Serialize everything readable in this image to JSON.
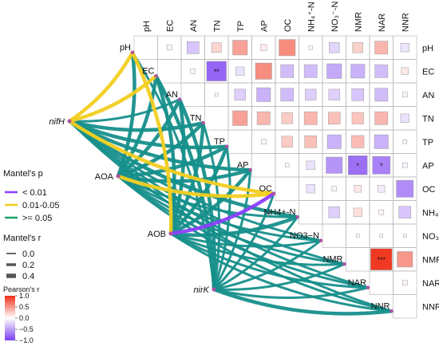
{
  "chart_data": {
    "type": "heatmap",
    "variables": [
      "pH",
      "EC",
      "AN",
      "TN",
      "TP",
      "AP",
      "OC",
      "NH₄⁺-N",
      "NO₃⁻-N",
      "NMR",
      "NAR",
      "NNR"
    ],
    "heatmap_layout": "upper-triangle",
    "network_labels": [
      "pH",
      "EC",
      "AN",
      "TN",
      "TP",
      "AP",
      "OC",
      "NH4+-N",
      "NO3−N",
      "NMR",
      "NAR",
      "NNR"
    ],
    "pearson_r": [
      {
        "row": "pH",
        "col": "EC",
        "r": -0.05,
        "sig": ""
      },
      {
        "row": "pH",
        "col": "AN",
        "r": -0.3,
        "sig": ""
      },
      {
        "row": "pH",
        "col": "TN",
        "r": 0.2,
        "sig": ""
      },
      {
        "row": "pH",
        "col": "TP",
        "r": 0.45,
        "sig": ""
      },
      {
        "row": "pH",
        "col": "AP",
        "r": 0.08,
        "sig": ""
      },
      {
        "row": "pH",
        "col": "OC",
        "r": 0.55,
        "sig": ""
      },
      {
        "row": "pH",
        "col": "NH4",
        "r": -0.03,
        "sig": ""
      },
      {
        "row": "pH",
        "col": "NO3",
        "r": -0.22,
        "sig": ""
      },
      {
        "row": "pH",
        "col": "NMR",
        "r": 0.22,
        "sig": ""
      },
      {
        "row": "pH",
        "col": "NAR",
        "r": 0.35,
        "sig": ""
      },
      {
        "row": "pH",
        "col": "NNR",
        "r": -0.15,
        "sig": ""
      },
      {
        "row": "EC",
        "col": "AN",
        "r": -0.05,
        "sig": ""
      },
      {
        "row": "EC",
        "col": "TN",
        "r": -0.8,
        "sig": "**"
      },
      {
        "row": "EC",
        "col": "TP",
        "r": -0.15,
        "sig": ""
      },
      {
        "row": "EC",
        "col": "AP",
        "r": 0.55,
        "sig": ""
      },
      {
        "row": "EC",
        "col": "OC",
        "r": -0.35,
        "sig": ""
      },
      {
        "row": "EC",
        "col": "NH4",
        "r": -0.35,
        "sig": ""
      },
      {
        "row": "EC",
        "col": "NO3",
        "r": -0.45,
        "sig": ""
      },
      {
        "row": "EC",
        "col": "NMR",
        "r": -0.4,
        "sig": ""
      },
      {
        "row": "EC",
        "col": "NAR",
        "r": -0.35,
        "sig": ""
      },
      {
        "row": "EC",
        "col": "NNR",
        "r": 0.1,
        "sig": ""
      },
      {
        "row": "AN",
        "col": "TN",
        "r": 0.02,
        "sig": ""
      },
      {
        "row": "AN",
        "col": "TP",
        "r": -0.25,
        "sig": ""
      },
      {
        "row": "AN",
        "col": "AP",
        "r": -0.4,
        "sig": ""
      },
      {
        "row": "AN",
        "col": "OC",
        "r": -0.35,
        "sig": ""
      },
      {
        "row": "AN",
        "col": "NH4",
        "r": -0.25,
        "sig": ""
      },
      {
        "row": "AN",
        "col": "NO3",
        "r": -0.25,
        "sig": ""
      },
      {
        "row": "AN",
        "col": "NMR",
        "r": -0.3,
        "sig": ""
      },
      {
        "row": "AN",
        "col": "NAR",
        "r": -0.35,
        "sig": ""
      },
      {
        "row": "AN",
        "col": "NNR",
        "r": -0.05,
        "sig": ""
      },
      {
        "row": "TN",
        "col": "TP",
        "r": 0.45,
        "sig": ""
      },
      {
        "row": "TN",
        "col": "AP",
        "r": 0.35,
        "sig": ""
      },
      {
        "row": "TN",
        "col": "OC",
        "r": 0.25,
        "sig": ""
      },
      {
        "row": "TN",
        "col": "NH4",
        "r": 0.35,
        "sig": ""
      },
      {
        "row": "TN",
        "col": "NO3",
        "r": 0.3,
        "sig": ""
      },
      {
        "row": "TN",
        "col": "NMR",
        "r": 0.28,
        "sig": ""
      },
      {
        "row": "TN",
        "col": "NAR",
        "r": 0.35,
        "sig": ""
      },
      {
        "row": "TN",
        "col": "NNR",
        "r": -0.15,
        "sig": ""
      },
      {
        "row": "TP",
        "col": "AP",
        "r": -0.05,
        "sig": ""
      },
      {
        "row": "TP",
        "col": "OC",
        "r": 0.25,
        "sig": ""
      },
      {
        "row": "TP",
        "col": "NH4",
        "r": 0.3,
        "sig": ""
      },
      {
        "row": "TP",
        "col": "NO3",
        "r": -0.4,
        "sig": ""
      },
      {
        "row": "TP",
        "col": "NMR",
        "r": 0.32,
        "sig": ""
      },
      {
        "row": "TP",
        "col": "NAR",
        "r": -0.4,
        "sig": ""
      },
      {
        "row": "TP",
        "col": "NNR",
        "r": 0.03,
        "sig": ""
      },
      {
        "row": "AP",
        "col": "OC",
        "r": -0.03,
        "sig": ""
      },
      {
        "row": "AP",
        "col": "NH4",
        "r": -0.15,
        "sig": ""
      },
      {
        "row": "AP",
        "col": "NO3",
        "r": -0.55,
        "sig": ""
      },
      {
        "row": "AP",
        "col": "NMR",
        "r": -0.75,
        "sig": "*"
      },
      {
        "row": "AP",
        "col": "NAR",
        "r": -0.65,
        "sig": "*"
      },
      {
        "row": "AP",
        "col": "NNR",
        "r": -0.05,
        "sig": ""
      },
      {
        "row": "OC",
        "col": "NH4",
        "r": -0.15,
        "sig": ""
      },
      {
        "row": "OC",
        "col": "NO3",
        "r": -0.05,
        "sig": ""
      },
      {
        "row": "OC",
        "col": "NMR",
        "r": 0.1,
        "sig": ""
      },
      {
        "row": "OC",
        "col": "NAR",
        "r": -0.1,
        "sig": ""
      },
      {
        "row": "OC",
        "col": "NNR",
        "r": -0.6,
        "sig": ""
      },
      {
        "row": "NH4",
        "col": "NO3",
        "r": -0.25,
        "sig": ""
      },
      {
        "row": "NH4",
        "col": "NMR",
        "r": 0.15,
        "sig": ""
      },
      {
        "row": "NH4",
        "col": "NAR",
        "r": 0.05,
        "sig": ""
      },
      {
        "row": "NH4",
        "col": "NNR",
        "r": -0.3,
        "sig": ""
      },
      {
        "row": "NO3",
        "col": "NMR",
        "r": 0.02,
        "sig": ""
      },
      {
        "row": "NO3",
        "col": "NAR",
        "r": 0.02,
        "sig": ""
      },
      {
        "row": "NO3",
        "col": "NNR",
        "r": -0.02,
        "sig": ""
      },
      {
        "row": "NMR",
        "col": "NAR",
        "r": 0.95,
        "sig": "***"
      },
      {
        "row": "NMR",
        "col": "NNR",
        "r": 0.5,
        "sig": ""
      },
      {
        "row": "NAR",
        "col": "NNR",
        "r": 0.05,
        "sig": ""
      }
    ],
    "mantel_groups": [
      "nifH",
      "AOA",
      "AOB",
      "nirK"
    ],
    "mantel_links": [
      {
        "from": "nifH",
        "to": "pH",
        "p_class": "0.01-0.05",
        "r_class": "0.4"
      },
      {
        "from": "nifH",
        "to": "EC",
        "p_class": "0.01-0.05",
        "r_class": "0.4"
      },
      {
        "from": "nifH",
        "to": "AN",
        "p_class": ">= 0.05",
        "r_class": "0.2"
      },
      {
        "from": "nifH",
        "to": "TN",
        "p_class": ">= 0.05",
        "r_class": "0.4"
      },
      {
        "from": "nifH",
        "to": "TP",
        "p_class": ">= 0.05",
        "r_class": "0.4"
      },
      {
        "from": "nifH",
        "to": "AP",
        "p_class": ">= 0.05",
        "r_class": "0.4"
      },
      {
        "from": "nifH",
        "to": "OC",
        "p_class": "0.01-0.05",
        "r_class": "0.4"
      },
      {
        "from": "nifH",
        "to": "NH4+-N",
        "p_class": ">= 0.05",
        "r_class": "0.4"
      },
      {
        "from": "nifH",
        "to": "NO3−N",
        "p_class": ">= 0.05",
        "r_class": "0.2"
      },
      {
        "from": "nifH",
        "to": "NMR",
        "p_class": ">= 0.05",
        "r_class": "0.2"
      },
      {
        "from": "nifH",
        "to": "NAR",
        "p_class": ">= 0.05",
        "r_class": "0.2"
      },
      {
        "from": "nifH",
        "to": "NNR",
        "p_class": ">= 0.05",
        "r_class": "0.2"
      },
      {
        "from": "AOA",
        "to": "pH",
        "p_class": ">= 0.05",
        "r_class": "0.4"
      },
      {
        "from": "AOA",
        "to": "EC",
        "p_class": ">= 0.05",
        "r_class": "0.4"
      },
      {
        "from": "AOA",
        "to": "AN",
        "p_class": ">= 0.05",
        "r_class": "0.4"
      },
      {
        "from": "AOA",
        "to": "TN",
        "p_class": ">= 0.05",
        "r_class": "0.4"
      },
      {
        "from": "AOA",
        "to": "TP",
        "p_class": ">= 0.05",
        "r_class": "0.4"
      },
      {
        "from": "AOA",
        "to": "AP",
        "p_class": ">= 0.05",
        "r_class": "0.4"
      },
      {
        "from": "AOA",
        "to": "OC",
        "p_class": "0.01-0.05",
        "r_class": "0.4"
      },
      {
        "from": "AOA",
        "to": "NH4+-N",
        "p_class": ">= 0.05",
        "r_class": "0.2"
      },
      {
        "from": "AOA",
        "to": "NO3−N",
        "p_class": ">= 0.05",
        "r_class": "0.2"
      },
      {
        "from": "AOA",
        "to": "NMR",
        "p_class": ">= 0.05",
        "r_class": "0.2"
      },
      {
        "from": "AOA",
        "to": "NAR",
        "p_class": ">= 0.05",
        "r_class": "0.2"
      },
      {
        "from": "AOA",
        "to": "NNR",
        "p_class": ">= 0.05",
        "r_class": "0.2"
      },
      {
        "from": "AOB",
        "to": "pH",
        "p_class": "0.01-0.05",
        "r_class": "0.4"
      },
      {
        "from": "AOB",
        "to": "EC",
        "p_class": ">= 0.05",
        "r_class": "0.4"
      },
      {
        "from": "AOB",
        "to": "AN",
        "p_class": ">= 0.05",
        "r_class": "0.4"
      },
      {
        "from": "AOB",
        "to": "TN",
        "p_class": ">= 0.05",
        "r_class": "0.4"
      },
      {
        "from": "AOB",
        "to": "TP",
        "p_class": ">= 0.05",
        "r_class": "0.4"
      },
      {
        "from": "AOB",
        "to": "AP",
        "p_class": ">= 0.05",
        "r_class": "0.4"
      },
      {
        "from": "AOB",
        "to": "OC",
        "p_class": "< 0.01",
        "r_class": "0.4"
      },
      {
        "from": "AOB",
        "to": "NH4+-N",
        "p_class": ">= 0.05",
        "r_class": "0.4"
      },
      {
        "from": "AOB",
        "to": "NO3−N",
        "p_class": ">= 0.05",
        "r_class": "0.2"
      },
      {
        "from": "AOB",
        "to": "NMR",
        "p_class": ">= 0.05",
        "r_class": "0.2"
      },
      {
        "from": "AOB",
        "to": "NAR",
        "p_class": ">= 0.05",
        "r_class": "0.2"
      },
      {
        "from": "AOB",
        "to": "NNR",
        "p_class": ">= 0.05",
        "r_class": "0.2"
      },
      {
        "from": "nirK",
        "to": "pH",
        "p_class": ">= 0.05",
        "r_class": "0.2"
      },
      {
        "from": "nirK",
        "to": "EC",
        "p_class": ">= 0.05",
        "r_class": "0.4"
      },
      {
        "from": "nirK",
        "to": "AN",
        "p_class": ">= 0.05",
        "r_class": "0.4"
      },
      {
        "from": "nirK",
        "to": "TN",
        "p_class": ">= 0.05",
        "r_class": "0.2"
      },
      {
        "from": "nirK",
        "to": "TP",
        "p_class": ">= 0.05",
        "r_class": "0.2"
      },
      {
        "from": "nirK",
        "to": "AP",
        "p_class": ">= 0.05",
        "r_class": "0.2"
      },
      {
        "from": "nirK",
        "to": "OC",
        "p_class": ">= 0.05",
        "r_class": "0.2"
      },
      {
        "from": "nirK",
        "to": "NH4+-N",
        "p_class": ">= 0.05",
        "r_class": "0.2"
      },
      {
        "from": "nirK",
        "to": "NO3−N",
        "p_class": ">= 0.05",
        "r_class": "0.2"
      },
      {
        "from": "nirK",
        "to": "NMR",
        "p_class": ">= 0.05",
        "r_class": "0.2"
      },
      {
        "from": "nirK",
        "to": "NAR",
        "p_class": ">= 0.05",
        "r_class": "0.2"
      },
      {
        "from": "nirK",
        "to": "NNR",
        "p_class": ">= 0.05",
        "r_class": "0.4"
      }
    ],
    "legend": {
      "mantel_p": {
        "title": "Mantel's p",
        "items": [
          {
            "label": "< 0.01",
            "color": "#8a3ffc"
          },
          {
            "label": "0.01-0.05",
            "color": "#f2cd1f"
          },
          {
            "label": ">= 0.05",
            "color": "#1aa36a"
          }
        ]
      },
      "mantel_r": {
        "title": "Mantel's r",
        "items": [
          {
            "label": "0.0",
            "value": 0.0
          },
          {
            "label": "0.2",
            "value": 0.2
          },
          {
            "label": "0.4",
            "value": 0.4
          }
        ]
      },
      "pearson_r": {
        "title": "Pearson's r",
        "ticks": [
          "1.0",
          "0.5",
          "0.0",
          "−0.5",
          "−1.0"
        ],
        "range": [
          -1.0,
          1.0
        ]
      }
    },
    "colors": {
      "link_p_ge_005": "#168f8b",
      "link_p_001_005": "#f2cd1f",
      "link_p_lt_001": "#8a3ffc",
      "heat_positive": "#ef2f17",
      "heat_negative": "#7b3ff2",
      "heat_neutral": "#ffffff",
      "node": "#b04fa3"
    }
  }
}
